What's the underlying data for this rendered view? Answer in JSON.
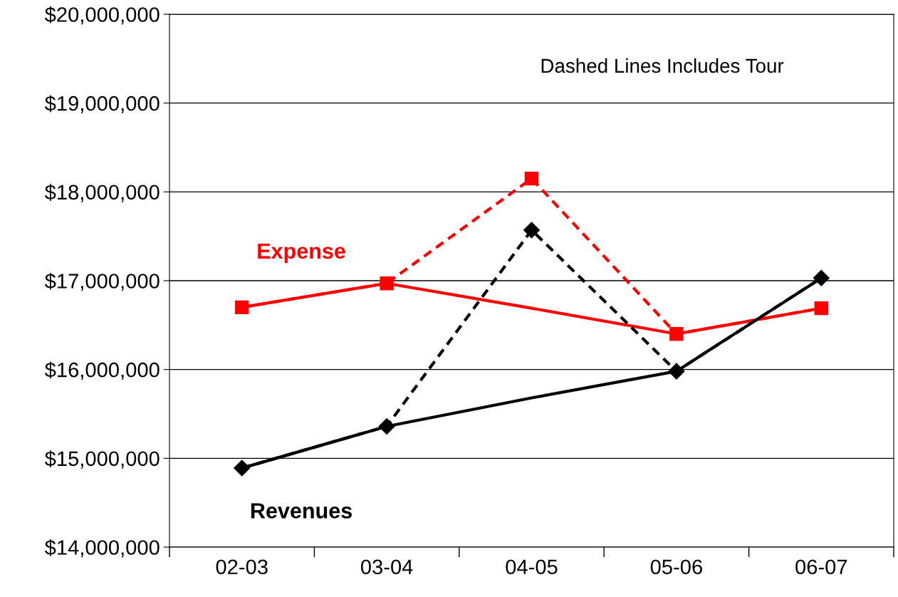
{
  "chart_data": {
    "type": "line",
    "categories": [
      "02-03",
      "03-04",
      "04-05",
      "05-06",
      "06-07"
    ],
    "series": [
      {
        "color": "#ff0000",
        "line_style": "dashed",
        "marker": "square",
        "values": [
          16700000,
          16970000,
          18150000,
          16400000,
          16690000
        ]
      },
      {
        "name": "Expense",
        "color": "#ff0000",
        "line_style": "solid",
        "marker": "none",
        "values": [
          16700000,
          16970000,
          16690000,
          16400000,
          16690000
        ]
      },
      {
        "color": "#000000",
        "line_style": "dashed",
        "marker": "diamond",
        "values": [
          14890000,
          15360000,
          17570000,
          15980000,
          17030000
        ]
      },
      {
        "name": "Revenues",
        "color": "#000000",
        "line_style": "solid",
        "marker": "none",
        "values": [
          14890000,
          15360000,
          15680000,
          15980000,
          17030000
        ]
      }
    ],
    "ylim": [
      14000000,
      20000000
    ],
    "yticks": [
      {
        "value": 14000000,
        "label": "$14,000,000"
      },
      {
        "value": 15000000,
        "label": "$15,000,000"
      },
      {
        "value": 16000000,
        "label": "$16,000,000"
      },
      {
        "value": 17000000,
        "label": "$17,000,000"
      },
      {
        "value": 18000000,
        "label": "$18,000,000"
      },
      {
        "value": 19000000,
        "label": "$19,000,000"
      },
      {
        "value": 20000000,
        "label": "$20,000,000"
      }
    ],
    "grid": "y",
    "legend": false,
    "annotations": [
      "Dashed Lines Includes Tour"
    ]
  }
}
